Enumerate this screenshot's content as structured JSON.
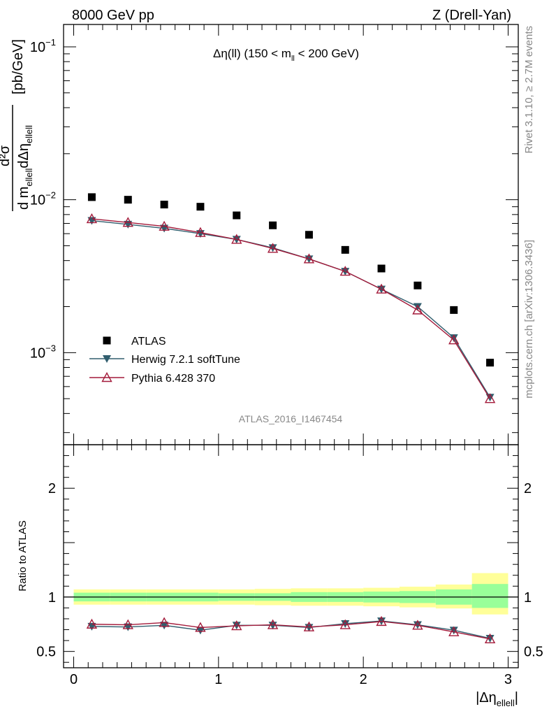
{
  "header": {
    "left": "8000 GeV pp",
    "right": "Z (Drell-Yan)"
  },
  "side_text": {
    "rivet": "Rivet 3.1.10, ≥ 2.7M events",
    "mcplots": "mcplots.cern.ch [arXiv:1306.3436]"
  },
  "chart_data": {
    "type": "scatter",
    "title": "Δη(ll) (150 < m_ll < 200 GeV)",
    "title_parts": {
      "main": "Δη(ll) (150 < m",
      "sub": "ll",
      "tail": " < 200 GeV)"
    },
    "watermark": "ATLAS_2016_I1467454",
    "ylabel_parts": {
      "num": "d²σ",
      "den_a": "d m",
      "den_sub1": "ellell",
      "den_b": "dΔη",
      "den_sub2": "ellell",
      "unit": "[pb/GeV]"
    },
    "xlabel_parts": {
      "main": "|Δη",
      "sub": "ellell",
      "tail": "|"
    },
    "ratio_ylabel": "Ratio to ATLAS",
    "xlim": [
      -0.07,
      3.07
    ],
    "ylim_main": [
      0.00025,
      0.14
    ],
    "ylim_ratio": [
      0.35,
      2.4
    ],
    "main_yticks": [
      {
        "value": 0.1,
        "base": "10",
        "exp": "−1"
      },
      {
        "value": 0.01,
        "base": "10",
        "exp": "−2"
      },
      {
        "value": 0.001,
        "base": "10",
        "exp": "−3"
      }
    ],
    "ratio_yticks": [
      {
        "value": 0.5,
        "label": "0.5"
      },
      {
        "value": 1,
        "label": "1"
      },
      {
        "value": 2,
        "label": "2"
      }
    ],
    "xticks": [
      {
        "value": 0,
        "label": "0"
      },
      {
        "value": 1,
        "label": "1"
      },
      {
        "value": 2,
        "label": "2"
      },
      {
        "value": 3,
        "label": "3"
      }
    ],
    "x": [
      0.125,
      0.375,
      0.625,
      0.875,
      1.125,
      1.375,
      1.625,
      1.875,
      2.125,
      2.375,
      2.625,
      2.875
    ],
    "bin_edges": [
      0,
      0.25,
      0.5,
      0.75,
      1.0,
      1.25,
      1.5,
      1.75,
      2.0,
      2.25,
      2.5,
      2.75,
      3.0
    ],
    "series": [
      {
        "name": "ATLAS",
        "color": "#000000",
        "marker": "square",
        "values": [
          0.0104,
          0.01,
          0.0093,
          0.009,
          0.0079,
          0.0068,
          0.0059,
          0.0047,
          0.00355,
          0.00275,
          0.0019,
          0.00086
        ]
      },
      {
        "name": "Herwig 7.2.1 softTune",
        "color": "#315e6e",
        "marker": "triangle-down",
        "values": [
          0.0073,
          0.0069,
          0.0065,
          0.006,
          0.0055,
          0.00485,
          0.0041,
          0.0034,
          0.0026,
          0.002,
          0.00125,
          0.00051
        ]
      },
      {
        "name": "Pythia 6.428 370",
        "color": "#a31a3a",
        "marker": "triangle-up-open",
        "values": [
          0.0075,
          0.0071,
          0.0067,
          0.0061,
          0.0055,
          0.0048,
          0.0041,
          0.0034,
          0.0026,
          0.0019,
          0.00121,
          0.0005
        ]
      }
    ],
    "ratio_series": [
      {
        "name": "Herwig 7.2.1 softTune",
        "color": "#315e6e",
        "marker": "triangle-down",
        "values": [
          0.73,
          0.725,
          0.74,
          0.695,
          0.74,
          0.74,
          0.72,
          0.755,
          0.78,
          0.745,
          0.695,
          0.62
        ]
      },
      {
        "name": "Pythia 6.428 370",
        "color": "#a31a3a",
        "marker": "triangle-up-open",
        "values": [
          0.75,
          0.745,
          0.765,
          0.72,
          0.735,
          0.745,
          0.725,
          0.745,
          0.775,
          0.74,
          0.68,
          0.615
        ]
      }
    ],
    "uncertainty_bands": {
      "outer_color": "#ffff99",
      "inner_color": "#99ff99",
      "inner": [
        [
          0.96,
          1.04
        ],
        [
          0.96,
          1.04
        ],
        [
          0.96,
          1.04
        ],
        [
          0.96,
          1.04
        ],
        [
          0.965,
          1.035
        ],
        [
          0.965,
          1.035
        ],
        [
          0.955,
          1.045
        ],
        [
          0.955,
          1.045
        ],
        [
          0.95,
          1.05
        ],
        [
          0.945,
          1.055
        ],
        [
          0.93,
          1.07
        ],
        [
          0.9,
          1.12
        ]
      ],
      "outer": [
        [
          0.93,
          1.07
        ],
        [
          0.93,
          1.07
        ],
        [
          0.93,
          1.07
        ],
        [
          0.93,
          1.07
        ],
        [
          0.93,
          1.07
        ],
        [
          0.925,
          1.075
        ],
        [
          0.92,
          1.08
        ],
        [
          0.92,
          1.08
        ],
        [
          0.915,
          1.085
        ],
        [
          0.905,
          1.095
        ],
        [
          0.895,
          1.115
        ],
        [
          0.84,
          1.22
        ]
      ]
    },
    "legend_position": "bottom-left",
    "yscale_main": "log"
  }
}
